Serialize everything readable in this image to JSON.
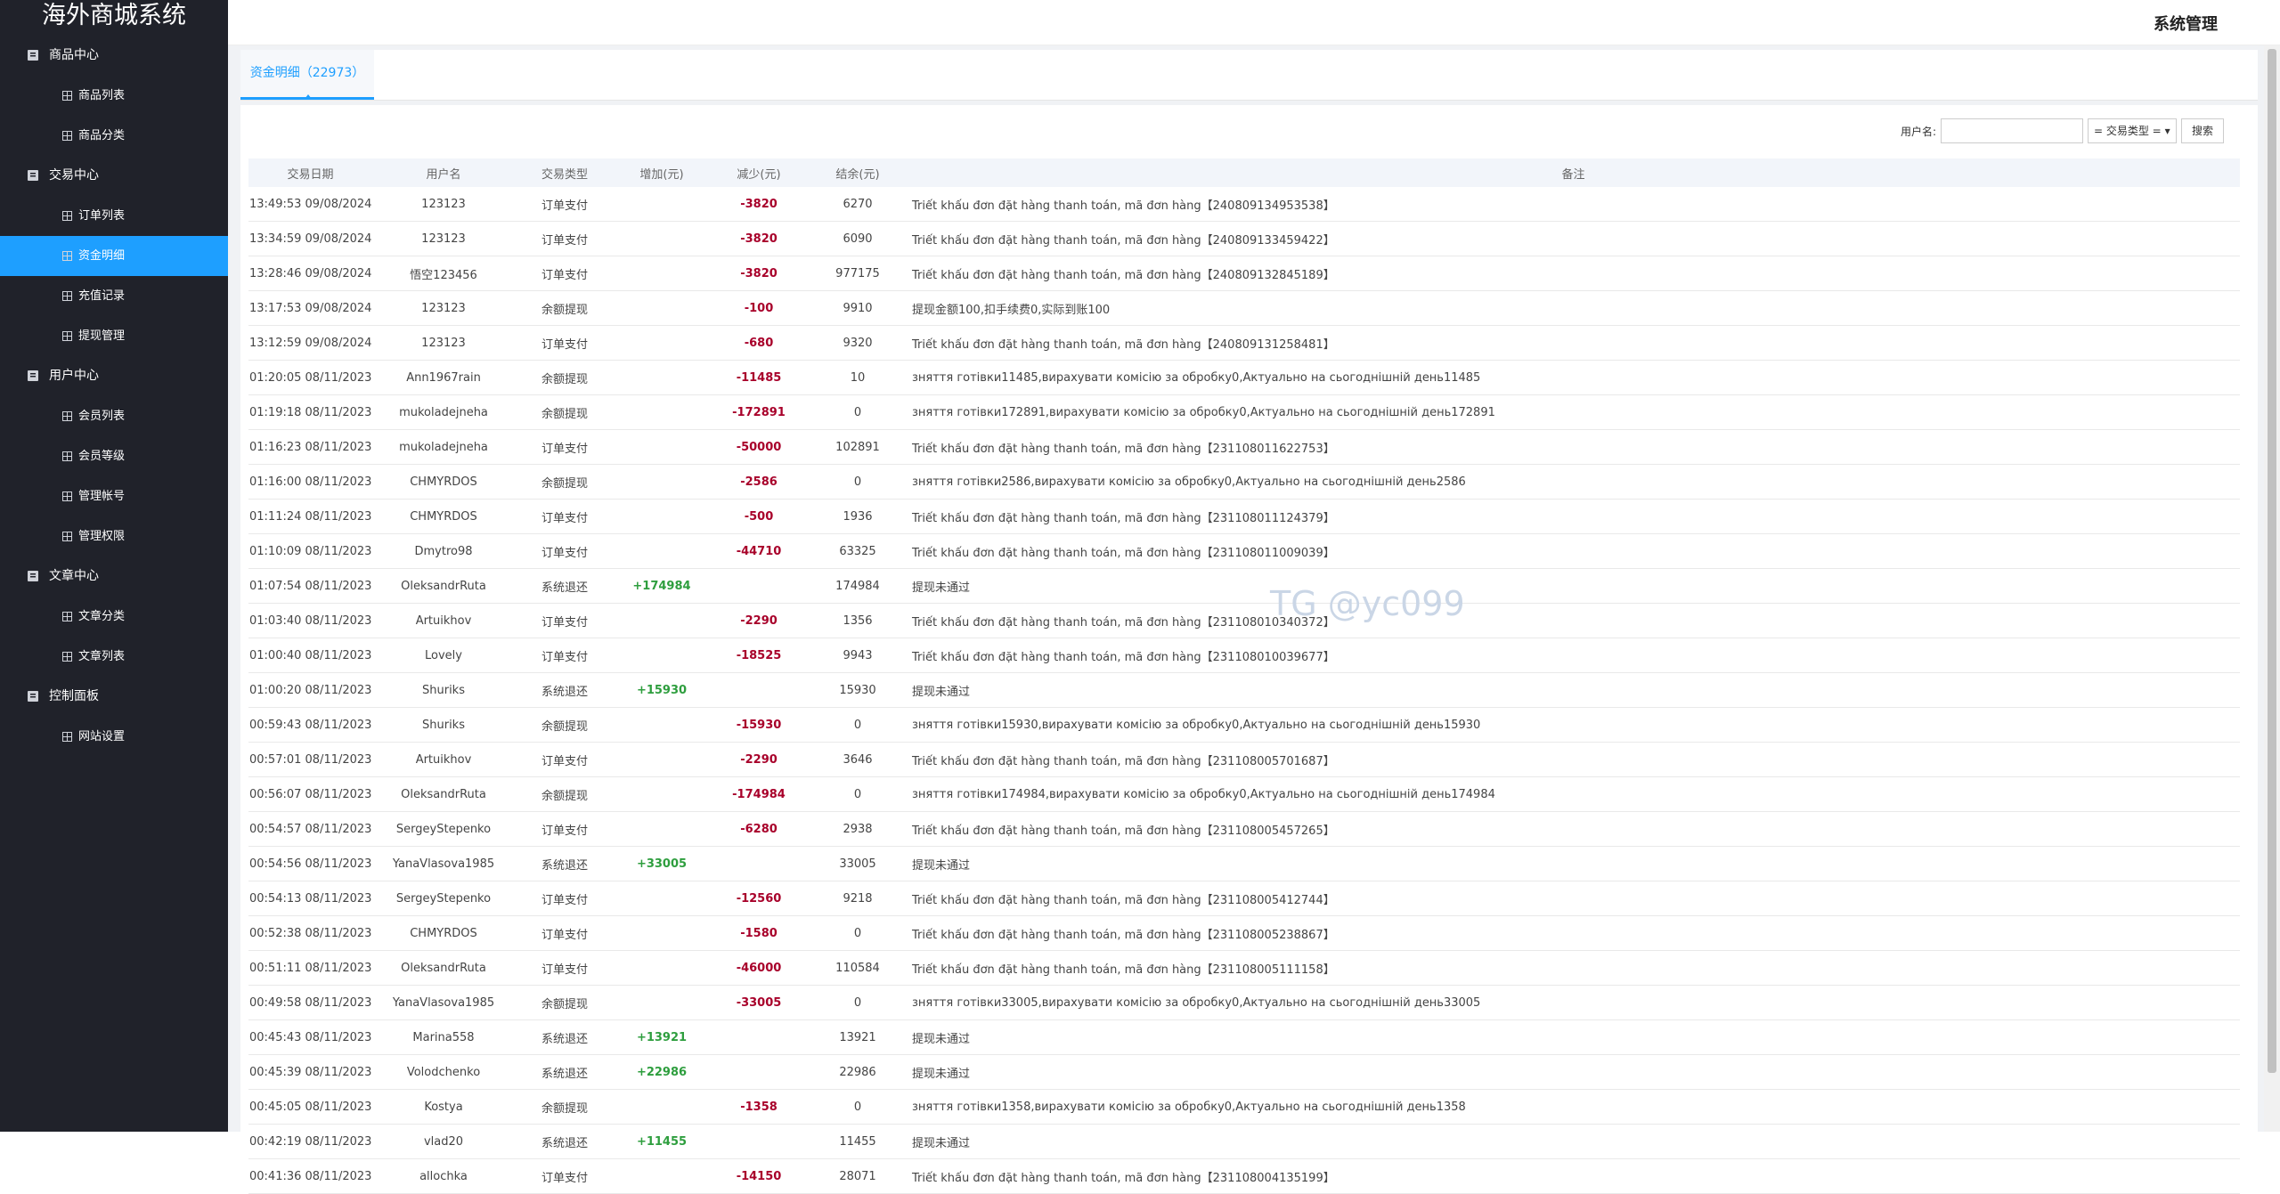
{
  "sidebar": {
    "title": "海外商城系统",
    "groups": [
      {
        "label": "商品中心",
        "items": [
          "商品列表",
          "商品分类"
        ]
      },
      {
        "label": "交易中心",
        "items": [
          "订单列表",
          "资金明细",
          "充值记录",
          "提现管理"
        ]
      },
      {
        "label": "用户中心",
        "items": [
          "会员列表",
          "会员等级",
          "管理帐号",
          "管理权限"
        ]
      },
      {
        "label": "文章中心",
        "items": [
          "文章分类",
          "文章列表"
        ]
      },
      {
        "label": "控制面板",
        "items": [
          "网站设置"
        ]
      }
    ]
  },
  "header": {
    "title": "系统管理"
  },
  "tab": {
    "label": "资金明细（22973）"
  },
  "search": {
    "username_label": "用户名:",
    "type_select": "= 交易类型 =",
    "button": "搜索"
  },
  "watermark": "TG @yc099",
  "table": {
    "headers": [
      "交易日期",
      "用户名",
      "交易类型",
      "增加(元)",
      "减少(元)",
      "结余(元)",
      "备注"
    ],
    "rows": [
      [
        "13:49:53 09/08/2024",
        "123123",
        "订单支付",
        null,
        "-3820",
        "6270",
        "Triết khấu đơn đặt hàng thanh toán, mã đơn hàng【240809134953538】"
      ],
      [
        "13:34:59 09/08/2024",
        "123123",
        "订单支付",
        null,
        "-3820",
        "6090",
        "Triết khấu đơn đặt hàng thanh toán, mã đơn hàng【240809133459422】"
      ],
      [
        "13:28:46 09/08/2024",
        "悟空123456",
        "订单支付",
        null,
        "-3820",
        "977175",
        "Triết khấu đơn đặt hàng thanh toán, mã đơn hàng【240809132845189】"
      ],
      [
        "13:17:53 09/08/2024",
        "123123",
        "余额提现",
        null,
        "-100",
        "9910",
        "提现金额100,扣手续费0,实际到账100"
      ],
      [
        "13:12:59 09/08/2024",
        "123123",
        "订单支付",
        null,
        "-680",
        "9320",
        "Triết khấu đơn đặt hàng thanh toán, mã đơn hàng【240809131258481】"
      ],
      [
        "01:20:05 08/11/2023",
        "Ann1967rain",
        "余额提现",
        null,
        "-11485",
        "10",
        "зняття готівки11485,вирахувати комісію за обробку0,Актуально на сьогоднішній день11485"
      ],
      [
        "01:19:18 08/11/2023",
        "mukoladejneha",
        "余额提现",
        null,
        "-172891",
        "0",
        "зняття готівки172891,вирахувати комісію за обробку0,Актуально на сьогоднішній день172891"
      ],
      [
        "01:16:23 08/11/2023",
        "mukoladejneha",
        "订单支付",
        null,
        "-50000",
        "102891",
        "Triết khấu đơn đặt hàng thanh toán, mã đơn hàng【231108011622753】"
      ],
      [
        "01:16:00 08/11/2023",
        "CHMYRDOS",
        "余额提现",
        null,
        "-2586",
        "0",
        "зняття готівки2586,вирахувати комісію за обробку0,Актуально на сьогоднішній день2586"
      ],
      [
        "01:11:24 08/11/2023",
        "CHMYRDOS",
        "订单支付",
        null,
        "-500",
        "1936",
        "Triết khấu đơn đặt hàng thanh toán, mã đơn hàng【231108011124379】"
      ],
      [
        "01:10:09 08/11/2023",
        "Dmytro98",
        "订单支付",
        null,
        "-44710",
        "63325",
        "Triết khấu đơn đặt hàng thanh toán, mã đơn hàng【231108011009039】"
      ],
      [
        "01:07:54 08/11/2023",
        "OleksandrRuta",
        "系统退还",
        "+174984",
        null,
        "174984",
        "提现未通过"
      ],
      [
        "01:03:40 08/11/2023",
        "Artuikhov",
        "订单支付",
        null,
        "-2290",
        "1356",
        "Triết khấu đơn đặt hàng thanh toán, mã đơn hàng【231108010340372】"
      ],
      [
        "01:00:40 08/11/2023",
        "Lovely",
        "订单支付",
        null,
        "-18525",
        "9943",
        "Triết khấu đơn đặt hàng thanh toán, mã đơn hàng【231108010039677】"
      ],
      [
        "01:00:20 08/11/2023",
        "Shuriks",
        "系统退还",
        "+15930",
        null,
        "15930",
        "提现未通过"
      ],
      [
        "00:59:43 08/11/2023",
        "Shuriks",
        "余额提现",
        null,
        "-15930",
        "0",
        "зняття готівки15930,вирахувати комісію за обробку0,Актуально на сьогоднішній день15930"
      ],
      [
        "00:57:01 08/11/2023",
        "Artuikhov",
        "订单支付",
        null,
        "-2290",
        "3646",
        "Triết khấu đơn đặt hàng thanh toán, mã đơn hàng【231108005701687】"
      ],
      [
        "00:56:07 08/11/2023",
        "OleksandrRuta",
        "余额提现",
        null,
        "-174984",
        "0",
        "зняття готівки174984,вирахувати комісію за обробку0,Актуально на сьогоднішній день174984"
      ],
      [
        "00:54:57 08/11/2023",
        "SergeyStepenko",
        "订单支付",
        null,
        "-6280",
        "2938",
        "Triết khấu đơn đặt hàng thanh toán, mã đơn hàng【231108005457265】"
      ],
      [
        "00:54:56 08/11/2023",
        "YanaVlasova1985",
        "系统退还",
        "+33005",
        null,
        "33005",
        "提现未通过"
      ],
      [
        "00:54:13 08/11/2023",
        "SergeyStepenko",
        "订单支付",
        null,
        "-12560",
        "9218",
        "Triết khấu đơn đặt hàng thanh toán, mã đơn hàng【231108005412744】"
      ],
      [
        "00:52:38 08/11/2023",
        "CHMYRDOS",
        "订单支付",
        null,
        "-1580",
        "0",
        "Triết khấu đơn đặt hàng thanh toán, mã đơn hàng【231108005238867】"
      ],
      [
        "00:51:11 08/11/2023",
        "OleksandrRuta",
        "订单支付",
        null,
        "-46000",
        "110584",
        "Triết khấu đơn đặt hàng thanh toán, mã đơn hàng【231108005111158】"
      ],
      [
        "00:49:58 08/11/2023",
        "YanaVlasova1985",
        "余额提现",
        null,
        "-33005",
        "0",
        "зняття готівки33005,вирахувати комісію за обробку0,Актуально на сьогоднішній день33005"
      ],
      [
        "00:45:43 08/11/2023",
        "Marina558",
        "系统退还",
        "+13921",
        null,
        "13921",
        "提现未通过"
      ],
      [
        "00:45:39 08/11/2023",
        "Volodchenko",
        "系统退还",
        "+22986",
        null,
        "22986",
        "提现未通过"
      ],
      [
        "00:45:05 08/11/2023",
        "Kostya",
        "余额提现",
        null,
        "-1358",
        "0",
        "зняття готівки1358,вирахувати комісію за обробку0,Актуально на сьогоднішній день1358"
      ],
      [
        "00:42:19 08/11/2023",
        "vlad20",
        "系统退还",
        "+11455",
        null,
        "11455",
        "提现未通过"
      ],
      [
        "00:41:36 08/11/2023",
        "allochka",
        "订单支付",
        null,
        "-14150",
        "28071",
        "Triết khấu đơn đặt hàng thanh toán, mã đơn hàng【231108004135199】"
      ]
    ]
  }
}
